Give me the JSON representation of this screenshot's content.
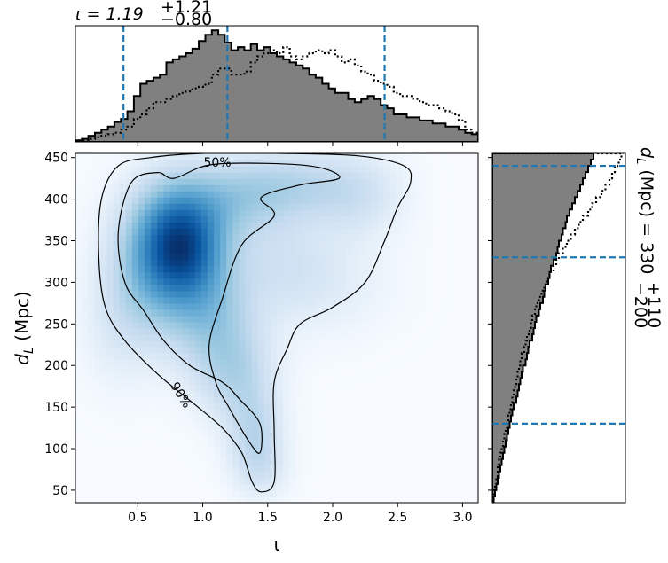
{
  "chart_data": [
    {
      "type": "heatmap",
      "panel": "joint",
      "xlabel": "ι",
      "ylabel_main": "d",
      "ylabel_sub": "L",
      "ylabel_rest": " (Mpc)",
      "xlim": [
        0.02,
        3.12
      ],
      "ylim": [
        35,
        455
      ],
      "xticks": [
        0.5,
        1.0,
        1.5,
        2.0,
        2.5,
        3.0
      ],
      "xtick_labels": [
        "0.5",
        "1.0",
        "1.5",
        "2.0",
        "2.5",
        "3.0"
      ],
      "yticks": [
        50,
        100,
        150,
        200,
        250,
        300,
        350,
        400,
        450
      ],
      "ytick_labels": [
        "50",
        "100",
        "150",
        "200",
        "250",
        "300",
        "350",
        "400",
        "450"
      ],
      "colormap": "Blues",
      "density_blobs": [
        {
          "x": 0.88,
          "y": 335,
          "sx": 0.22,
          "sy": 40,
          "w": 1.0
        },
        {
          "x": 0.78,
          "y": 370,
          "sx": 0.25,
          "sy": 45,
          "w": 0.75
        },
        {
          "x": 0.6,
          "y": 310,
          "sx": 0.25,
          "sy": 55,
          "w": 0.7
        },
        {
          "x": 1.05,
          "y": 260,
          "sx": 0.25,
          "sy": 45,
          "w": 0.65
        },
        {
          "x": 1.25,
          "y": 190,
          "sx": 0.22,
          "sy": 40,
          "w": 0.55
        },
        {
          "x": 1.4,
          "y": 120,
          "sx": 0.15,
          "sy": 35,
          "w": 0.5
        },
        {
          "x": 1.45,
          "y": 75,
          "sx": 0.15,
          "sy": 25,
          "w": 0.3
        },
        {
          "x": 1.2,
          "y": 400,
          "sx": 0.35,
          "sy": 35,
          "w": 0.55
        },
        {
          "x": 1.7,
          "y": 420,
          "sx": 0.35,
          "sy": 30,
          "w": 0.45
        },
        {
          "x": 2.2,
          "y": 405,
          "sx": 0.25,
          "sy": 35,
          "w": 0.35
        },
        {
          "x": 1.6,
          "y": 320,
          "sx": 0.3,
          "sy": 45,
          "w": 0.3
        },
        {
          "x": 2.0,
          "y": 300,
          "sx": 0.35,
          "sy": 45,
          "w": 0.18
        },
        {
          "x": 0.35,
          "y": 240,
          "sx": 0.2,
          "sy": 50,
          "w": 0.2
        }
      ],
      "contour_levels": [
        {
          "label": "50%",
          "points": [
            [
              0.78,
              425
            ],
            [
              1.05,
              441
            ],
            [
              1.5,
              443
            ],
            [
              1.9,
              438
            ],
            [
              2.05,
              425
            ],
            [
              1.75,
              417
            ],
            [
              1.45,
              402
            ],
            [
              1.55,
              380
            ],
            [
              1.3,
              345
            ],
            [
              1.15,
              280
            ],
            [
              1.05,
              225
            ],
            [
              1.1,
              180
            ],
            [
              1.2,
              150
            ],
            [
              1.35,
              110
            ],
            [
              1.44,
              95
            ],
            [
              1.44,
              130
            ],
            [
              1.28,
              160
            ],
            [
              1.15,
              180
            ],
            [
              0.9,
              200
            ],
            [
              0.7,
              230
            ],
            [
              0.55,
              265
            ],
            [
              0.4,
              300
            ],
            [
              0.35,
              360
            ],
            [
              0.45,
              420
            ],
            [
              0.65,
              432
            ]
          ]
        },
        {
          "label": "90%",
          "points": [
            [
              0.6,
              450
            ],
            [
              1.0,
              455
            ],
            [
              1.6,
              455
            ],
            [
              2.2,
              452
            ],
            [
              2.55,
              440
            ],
            [
              2.6,
              420
            ],
            [
              2.5,
              390
            ],
            [
              2.4,
              350
            ],
            [
              2.25,
              300
            ],
            [
              2.0,
              270
            ],
            [
              1.75,
              250
            ],
            [
              1.65,
              220
            ],
            [
              1.55,
              180
            ],
            [
              1.55,
              120
            ],
            [
              1.55,
              60
            ],
            [
              1.45,
              48
            ],
            [
              1.38,
              60
            ],
            [
              1.3,
              95
            ],
            [
              1.15,
              125
            ],
            [
              0.9,
              158
            ],
            [
              0.65,
              190
            ],
            [
              0.4,
              230
            ],
            [
              0.25,
              270
            ],
            [
              0.2,
              330
            ],
            [
              0.22,
              400
            ],
            [
              0.35,
              440
            ]
          ]
        }
      ],
      "contour_text": [
        "50%",
        "90%"
      ]
    },
    {
      "type": "bar",
      "panel": "top-marginal",
      "title_prefix": "ι = 1.19",
      "title_sup": "+1.21",
      "title_sub": "−0.80",
      "x_edges_start": 0.02,
      "bin_width": 0.05,
      "series": [
        {
          "style": "filled-gray-black-outline",
          "values": [
            1,
            2,
            4,
            6,
            8,
            10,
            13,
            15,
            20,
            30,
            38,
            40,
            42,
            44,
            52,
            54,
            56,
            58,
            61,
            66,
            70,
            73,
            70,
            65,
            60,
            62,
            60,
            64,
            60,
            62,
            58,
            56,
            54,
            52,
            50,
            48,
            44,
            42,
            38,
            35,
            32,
            32,
            28,
            26,
            28,
            30,
            28,
            24,
            22,
            18,
            18,
            16,
            16,
            14,
            14,
            12,
            12,
            10,
            10,
            8,
            6,
            5
          ]
        },
        {
          "style": "dotted-black",
          "values": [
            1,
            1,
            2,
            3,
            4,
            5,
            6,
            8,
            10,
            15,
            18,
            22,
            26,
            26,
            28,
            30,
            32,
            33,
            35,
            36,
            38,
            44,
            48,
            48,
            44,
            44,
            46,
            52,
            56,
            58,
            60,
            58,
            62,
            56,
            54,
            56,
            58,
            60,
            58,
            60,
            56,
            52,
            54,
            50,
            46,
            44,
            40,
            38,
            36,
            32,
            30,
            30,
            28,
            26,
            24,
            24,
            22,
            20,
            18,
            14,
            8,
            6
          ]
        }
      ],
      "vlines": [
        0.39,
        1.19,
        2.4
      ]
    },
    {
      "type": "bar",
      "panel": "right-marginal",
      "title_prefix": "d",
      "title_subL": "L",
      "title_rest": " (Mpc) = 330",
      "title_sup": "+110",
      "title_sub": "−200",
      "y_edges_start": 35,
      "bin_width": 7.5,
      "series": [
        {
          "style": "filled-gray-black-outline",
          "values": [
            1,
            2,
            3,
            4,
            5,
            6,
            7,
            8,
            9,
            10,
            11,
            12,
            13,
            14,
            15,
            16,
            18,
            19,
            20,
            21,
            22,
            23,
            25,
            26,
            27,
            28,
            30,
            31,
            32,
            33,
            35,
            36,
            38,
            39,
            40,
            42,
            43,
            44,
            46,
            48,
            49,
            50,
            52,
            53,
            55,
            56,
            58,
            60,
            62,
            64,
            66,
            68,
            70,
            72,
            74,
            76
          ]
        },
        {
          "style": "dotted-black",
          "values": [
            1,
            1,
            2,
            3,
            4,
            4,
            5,
            6,
            7,
            8,
            9,
            10,
            11,
            12,
            13,
            14,
            15,
            16,
            17,
            18,
            19,
            20,
            21,
            22,
            24,
            25,
            26,
            28,
            29,
            30,
            32,
            33,
            35,
            37,
            39,
            41,
            43,
            46,
            48,
            50,
            53,
            56,
            59,
            62,
            65,
            68,
            72,
            75,
            78,
            82,
            85,
            88,
            90,
            92,
            95,
            97
          ]
        }
      ],
      "hlines": [
        130,
        330,
        440
      ]
    }
  ]
}
